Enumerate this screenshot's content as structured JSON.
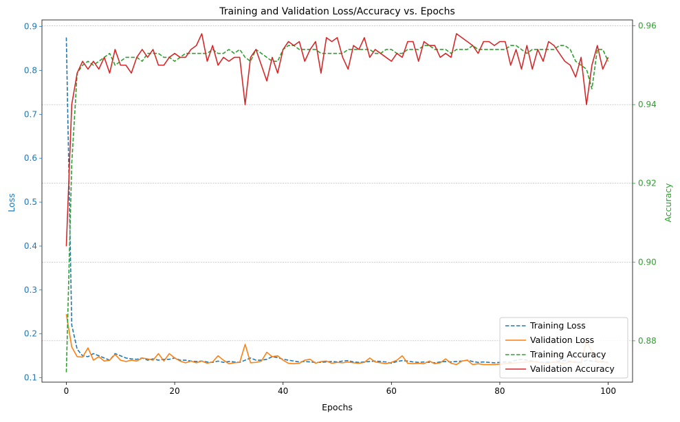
{
  "chart_data": {
    "type": "line",
    "title": "Training and Validation Loss/Accuracy vs. Epochs",
    "xlabel": "Epochs",
    "ylabel_left": "Loss",
    "ylabel_right": "Accuracy",
    "xlim": [
      -4.5,
      104.5
    ],
    "ylim_left": [
      0.09,
      0.915
    ],
    "ylim_right": [
      0.8695,
      0.9615
    ],
    "xticks": [
      0,
      20,
      40,
      60,
      80,
      100
    ],
    "xtick_labels": [
      "0",
      "20",
      "40",
      "60",
      "80",
      "100"
    ],
    "yticks_left": [
      0.1,
      0.2,
      0.3,
      0.4,
      0.5,
      0.6,
      0.7,
      0.8,
      0.9
    ],
    "ytick_labels_left": [
      "0.1",
      "0.2",
      "0.3",
      "0.4",
      "0.5",
      "0.6",
      "0.7",
      "0.8",
      "0.9"
    ],
    "yticks_right": [
      0.88,
      0.9,
      0.92,
      0.94,
      0.96
    ],
    "ytick_labels_right": [
      "0.88",
      "0.90",
      "0.92",
      "0.94",
      "0.96"
    ],
    "grid": "horizontal dotted at right-axis ticks",
    "legend_position": "lower-right",
    "colors": {
      "left_axis": "#1f77b4",
      "right_axis": "#2ca02c",
      "grid": "#b0b0b0"
    },
    "series": [
      {
        "name": "Training Loss",
        "axis": "left",
        "color": "#1f77b4",
        "style": "dashed",
        "values": [
          0.875,
          0.22,
          0.165,
          0.15,
          0.148,
          0.155,
          0.15,
          0.145,
          0.14,
          0.155,
          0.15,
          0.145,
          0.143,
          0.142,
          0.145,
          0.14,
          0.143,
          0.14,
          0.142,
          0.142,
          0.145,
          0.14,
          0.14,
          0.138,
          0.137,
          0.138,
          0.136,
          0.135,
          0.138,
          0.135,
          0.137,
          0.136,
          0.135,
          0.14,
          0.145,
          0.14,
          0.14,
          0.142,
          0.148,
          0.146,
          0.142,
          0.14,
          0.138,
          0.136,
          0.137,
          0.136,
          0.135,
          0.135,
          0.136,
          0.137,
          0.136,
          0.138,
          0.139,
          0.136,
          0.135,
          0.136,
          0.137,
          0.138,
          0.137,
          0.136,
          0.133,
          0.137,
          0.139,
          0.138,
          0.136,
          0.135,
          0.136,
          0.135,
          0.134,
          0.136,
          0.137,
          0.136,
          0.137,
          0.138,
          0.14,
          0.137,
          0.135,
          0.136,
          0.135,
          0.134,
          0.135,
          0.136,
          0.135,
          0.14,
          0.142,
          0.14,
          0.138,
          0.136,
          0.135,
          0.136,
          0.135,
          0.138,
          0.139,
          0.137,
          0.136,
          0.135,
          0.14,
          0.138,
          0.137,
          0.136,
          0.135
        ]
      },
      {
        "name": "Validation Loss",
        "axis": "left",
        "color": "#ff7f0e",
        "style": "solid",
        "values": [
          0.245,
          0.17,
          0.148,
          0.147,
          0.168,
          0.14,
          0.148,
          0.138,
          0.14,
          0.153,
          0.14,
          0.137,
          0.14,
          0.138,
          0.145,
          0.143,
          0.14,
          0.155,
          0.138,
          0.155,
          0.145,
          0.138,
          0.134,
          0.138,
          0.134,
          0.138,
          0.133,
          0.136,
          0.15,
          0.14,
          0.132,
          0.134,
          0.135,
          0.176,
          0.134,
          0.135,
          0.138,
          0.158,
          0.148,
          0.15,
          0.14,
          0.133,
          0.132,
          0.133,
          0.14,
          0.142,
          0.133,
          0.137,
          0.138,
          0.133,
          0.135,
          0.134,
          0.136,
          0.134,
          0.133,
          0.135,
          0.145,
          0.136,
          0.134,
          0.132,
          0.135,
          0.14,
          0.15,
          0.133,
          0.132,
          0.133,
          0.132,
          0.138,
          0.132,
          0.134,
          0.143,
          0.133,
          0.13,
          0.138,
          0.14,
          0.13,
          0.132,
          0.13,
          0.13,
          0.13,
          0.131,
          0.132,
          0.133,
          0.134,
          0.135,
          0.136,
          0.137,
          0.135,
          0.134,
          0.133,
          0.136,
          0.134,
          0.133,
          0.136,
          0.135,
          0.134,
          0.184,
          0.16,
          0.135,
          0.138,
          0.133
        ]
      },
      {
        "name": "Training Accuracy",
        "axis": "right",
        "color": "#2ca02c",
        "style": "dashed",
        "values": [
          0.872,
          0.925,
          0.948,
          0.95,
          0.951,
          0.95,
          0.951,
          0.952,
          0.953,
          0.95,
          0.951,
          0.952,
          0.952,
          0.952,
          0.951,
          0.953,
          0.953,
          0.953,
          0.952,
          0.952,
          0.951,
          0.952,
          0.953,
          0.953,
          0.953,
          0.953,
          0.953,
          0.954,
          0.953,
          0.953,
          0.954,
          0.953,
          0.954,
          0.952,
          0.951,
          0.954,
          0.953,
          0.952,
          0.951,
          0.951,
          0.954,
          0.955,
          0.955,
          0.954,
          0.954,
          0.954,
          0.954,
          0.953,
          0.953,
          0.953,
          0.953,
          0.953,
          0.954,
          0.954,
          0.954,
          0.954,
          0.954,
          0.953,
          0.953,
          0.954,
          0.954,
          0.953,
          0.953,
          0.954,
          0.954,
          0.954,
          0.955,
          0.955,
          0.954,
          0.954,
          0.954,
          0.953,
          0.954,
          0.954,
          0.954,
          0.955,
          0.954,
          0.954,
          0.954,
          0.954,
          0.954,
          0.954,
          0.955,
          0.955,
          0.954,
          0.953,
          0.954,
          0.954,
          0.954,
          0.954,
          0.954,
          0.955,
          0.955,
          0.954,
          0.951,
          0.95,
          0.949,
          0.944,
          0.954,
          0.954,
          0.951
        ]
      },
      {
        "name": "Validation Accuracy",
        "axis": "right",
        "color": "#d62728",
        "style": "solid",
        "values": [
          0.904,
          0.94,
          0.948,
          0.951,
          0.949,
          0.951,
          0.949,
          0.952,
          0.948,
          0.954,
          0.95,
          0.95,
          0.948,
          0.952,
          0.954,
          0.952,
          0.954,
          0.95,
          0.95,
          0.952,
          0.953,
          0.952,
          0.952,
          0.954,
          0.955,
          0.958,
          0.951,
          0.955,
          0.95,
          0.952,
          0.951,
          0.952,
          0.952,
          0.94,
          0.952,
          0.954,
          0.95,
          0.946,
          0.952,
          0.948,
          0.954,
          0.956,
          0.955,
          0.956,
          0.951,
          0.954,
          0.956,
          0.948,
          0.957,
          0.956,
          0.957,
          0.952,
          0.949,
          0.955,
          0.954,
          0.957,
          0.952,
          0.954,
          0.953,
          0.952,
          0.951,
          0.953,
          0.952,
          0.956,
          0.956,
          0.951,
          0.956,
          0.955,
          0.955,
          0.952,
          0.953,
          0.952,
          0.958,
          0.957,
          0.956,
          0.955,
          0.953,
          0.956,
          0.956,
          0.955,
          0.956,
          0.956,
          0.95,
          0.954,
          0.949,
          0.955,
          0.949,
          0.954,
          0.951,
          0.956,
          0.955,
          0.953,
          0.951,
          0.95,
          0.947,
          0.952,
          0.94,
          0.95,
          0.955,
          0.949,
          0.952
        ]
      }
    ]
  }
}
